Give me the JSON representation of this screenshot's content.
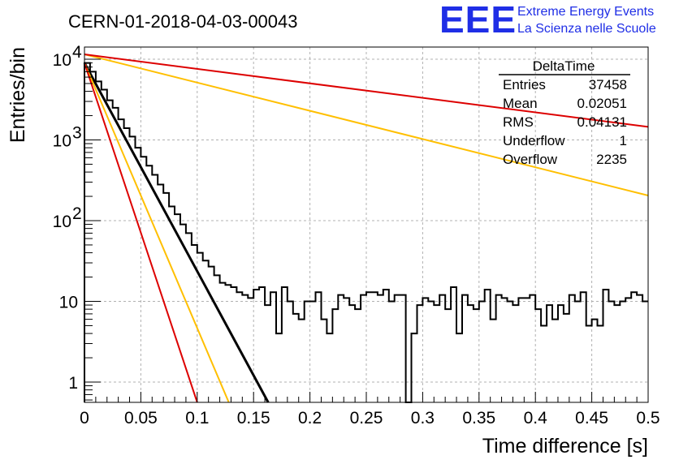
{
  "title": "CERN-01-2018-04-03-00043",
  "logo": {
    "mark": "EEE",
    "line1": "Extreme Energy Events",
    "line2": "La Scienza nelle Scuole",
    "color": "#1f2ee6"
  },
  "stats_box": {
    "name": "DeltaTime",
    "rows": [
      {
        "label": "Entries",
        "value": "37458"
      },
      {
        "label": "Mean",
        "value": "0.02051"
      },
      {
        "label": "RMS",
        "value": "0.04131"
      },
      {
        "label": "Underflow",
        "value": "1"
      },
      {
        "label": "Overflow",
        "value": "2235"
      }
    ]
  },
  "chart_data": {
    "type": "line",
    "title": "CERN-01-2018-04-03-00043",
    "xlabel": "Time difference [s]",
    "ylabel": "Entries/bin",
    "xlim": [
      0,
      0.5
    ],
    "ylim": [
      0.5,
      16000
    ],
    "yscale": "log",
    "grid": true,
    "x_ticks": [
      "0",
      "0.05",
      "0.1",
      "0.15",
      "0.2",
      "0.25",
      "0.3",
      "0.35",
      "0.4",
      "0.45",
      "0.5"
    ],
    "y_ticks": [
      {
        "value": 1,
        "label": "1"
      },
      {
        "value": 10,
        "label": "10"
      },
      {
        "value": 100,
        "label": "10",
        "exp": "2"
      },
      {
        "value": 1000,
        "label": "10",
        "exp": "3"
      },
      {
        "value": 10000,
        "label": "10",
        "exp": "4"
      }
    ],
    "histogram": {
      "bin_width": 0.005,
      "color": "#000000",
      "counts": [
        9000,
        7000,
        5300,
        4200,
        3100,
        2500,
        1800,
        1400,
        1100,
        800,
        620,
        480,
        370,
        280,
        220,
        150,
        120,
        90,
        70,
        50,
        40,
        32,
        27,
        21,
        17,
        16,
        15,
        13,
        12,
        11,
        14,
        15,
        9,
        13,
        4,
        15,
        10,
        7,
        6,
        10,
        10,
        13,
        6,
        4,
        8,
        12,
        11,
        9,
        8,
        12,
        13,
        13,
        12,
        14,
        10,
        12,
        12,
        0.5,
        4,
        9,
        11,
        10,
        9,
        12,
        8,
        15,
        4,
        12,
        9,
        8,
        10,
        14,
        6,
        12,
        11,
        10,
        9,
        11,
        11,
        12,
        8,
        5,
        9,
        6,
        9,
        7,
        12,
        10,
        13,
        5,
        6,
        5,
        14,
        10,
        9,
        10,
        11,
        13,
        12,
        10
      ]
    },
    "series": [
      {
        "color": "#000000",
        "points": [
          [
            0,
            9000
          ],
          [
            0.163,
            0.5
          ]
        ]
      },
      {
        "color": "#ffbf00",
        "points": [
          [
            0,
            9000
          ],
          [
            0.128,
            0.5
          ]
        ]
      },
      {
        "color": "#dd0000",
        "points": [
          [
            0,
            9000
          ],
          [
            0.1,
            0.5
          ]
        ]
      },
      {
        "color": "#ffbf00",
        "points": [
          [
            0,
            11500
          ],
          [
            0.5,
            205
          ]
        ]
      },
      {
        "color": "#dd0000",
        "points": [
          [
            0,
            11500
          ],
          [
            0.5,
            1450
          ]
        ]
      }
    ]
  }
}
